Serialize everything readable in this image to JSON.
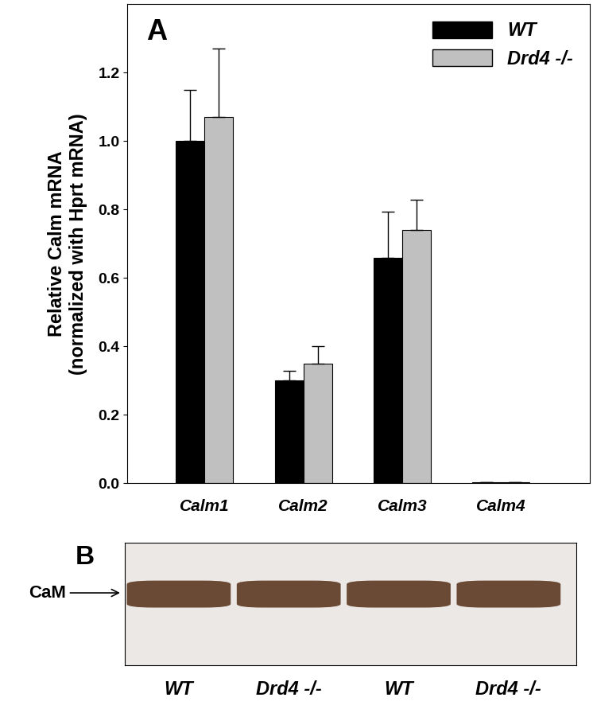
{
  "chart_data": {
    "type": "bar",
    "title": "A",
    "y_label": "Relative Calm mRNA\n(normalized with Hprt mRNA)",
    "categories": [
      "Calm1",
      "Calm2",
      "Calm3",
      "Calm4"
    ],
    "series": [
      {
        "name": "WT",
        "color": "#000000",
        "values": [
          1.0,
          0.3,
          0.66,
          0.003
        ],
        "errors": [
          0.15,
          0.03,
          0.135,
          0
        ]
      },
      {
        "name": "Drd4 -/-",
        "color": "#c0c0c0",
        "values": [
          1.07,
          0.35,
          0.74,
          0.003
        ],
        "errors": [
          0.2,
          0.05,
          0.09,
          0
        ]
      }
    ],
    "ylim": [
      0,
      1.4
    ],
    "yticks": [
      {
        "value": 0,
        "label": "0.0"
      },
      {
        "value": 0.2,
        "label": "0.2"
      },
      {
        "value": 0.4,
        "label": "0.4"
      },
      {
        "value": 0.6,
        "label": "0.6"
      },
      {
        "value": 0.8,
        "label": "0.8"
      },
      {
        "value": 1.0,
        "label": "1.0"
      },
      {
        "value": 1.2,
        "label": "1.2"
      }
    ],
    "legend": "upper right",
    "grid": false
  },
  "blot": {
    "panel": "B",
    "band_label": "CaM",
    "lanes": [
      "WT",
      "Drd4 -/-",
      "WT",
      "Drd4 -/-"
    ]
  }
}
